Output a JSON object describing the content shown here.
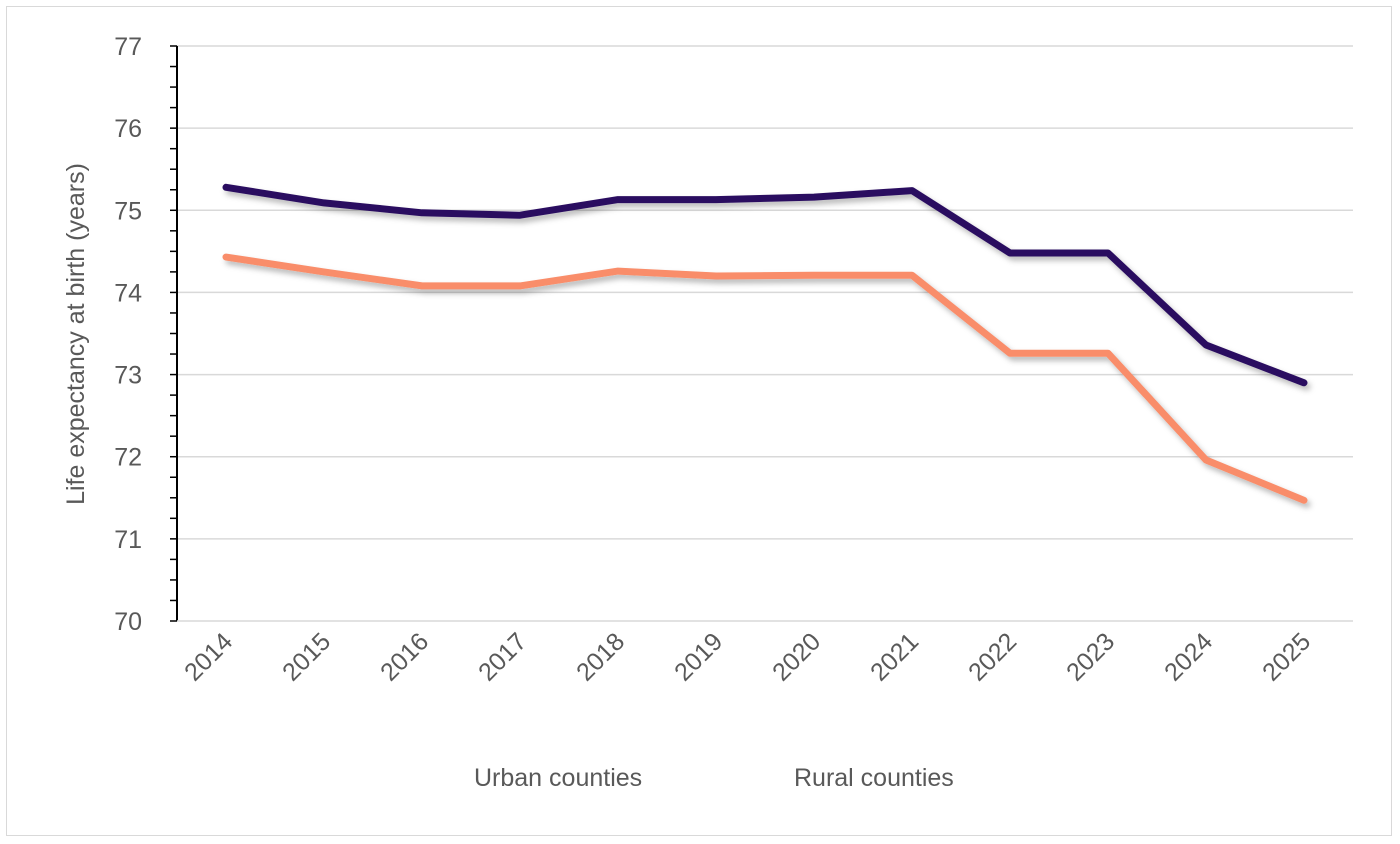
{
  "chart_data": {
    "type": "line",
    "title": "",
    "xlabel": "",
    "ylabel": "Life expectancy at birth (years)",
    "ylim": [
      70,
      77
    ],
    "yticks": [
      70,
      71,
      72,
      73,
      74,
      75,
      76,
      77
    ],
    "grid": true,
    "legend": "bottom",
    "categories": [
      "2014",
      "2015",
      "2016",
      "2017",
      "2018",
      "2019",
      "2020",
      "2021",
      "2022",
      "2023",
      "2024",
      "2025"
    ],
    "series": [
      {
        "name": "Urban counties",
        "color": "#2b1060",
        "values": [
          75.28,
          75.09,
          74.97,
          74.94,
          75.13,
          75.13,
          75.16,
          75.24,
          74.48,
          74.48,
          73.36,
          72.9
        ]
      },
      {
        "name": "Rural counties",
        "color": "#f98d6a",
        "values": [
          74.43,
          74.25,
          74.08,
          74.08,
          74.26,
          74.2,
          74.21,
          74.21,
          73.26,
          73.26,
          71.96,
          71.47
        ]
      }
    ]
  }
}
